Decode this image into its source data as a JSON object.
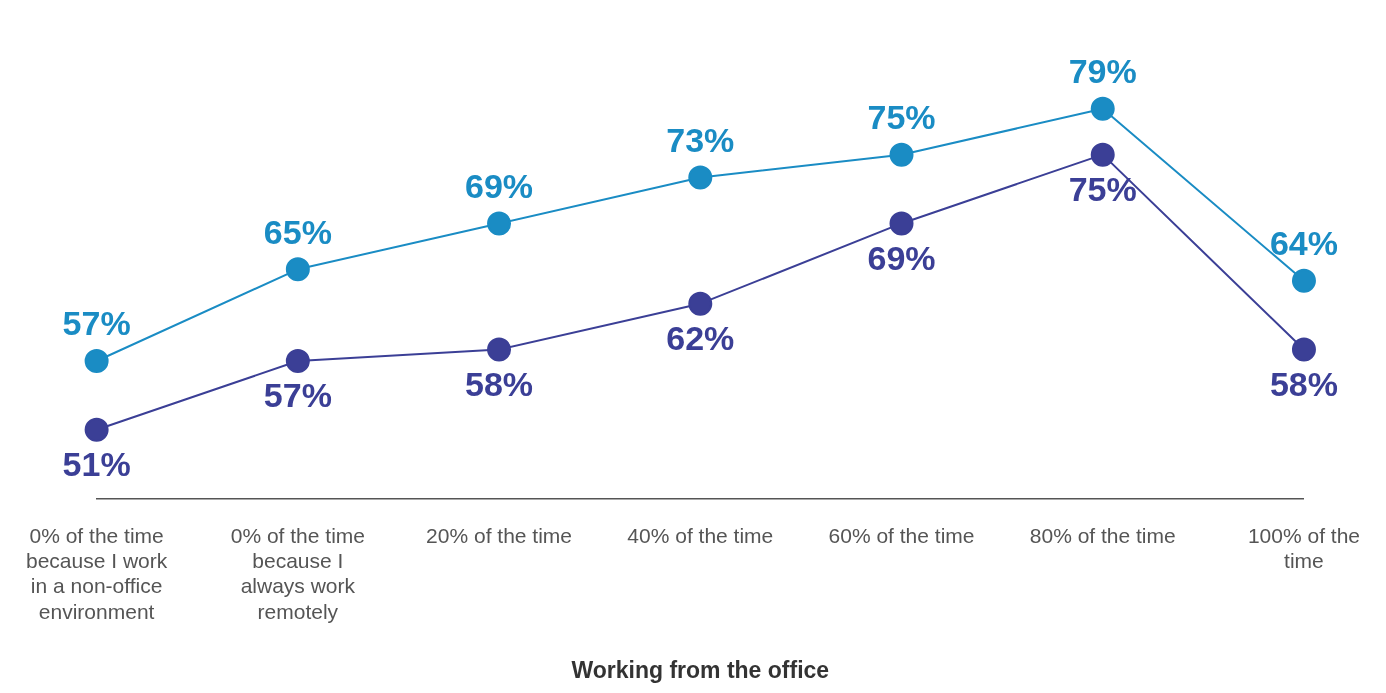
{
  "chart_data": {
    "type": "line",
    "xlabel": "Working from the office",
    "categories": [
      "0% of the time because I work in a non-office environment",
      "0% of the time because I always work remotely",
      "20% of the time",
      "40% of the time",
      "60% of the time",
      "80% of the time",
      "100% of the time"
    ],
    "series": [
      {
        "color": "#1a8cc4",
        "values": [
          57,
          65,
          69,
          73,
          75,
          79,
          64
        ],
        "value_labels": [
          "57%",
          "65%",
          "69%",
          "73%",
          "75%",
          "79%",
          "64%"
        ]
      },
      {
        "color": "#3b3f96",
        "values": [
          51,
          57,
          58,
          62,
          69,
          75,
          58
        ],
        "value_labels": [
          "51%",
          "57%",
          "58%",
          "62%",
          "69%",
          "75%",
          "58%"
        ]
      }
    ],
    "tick_labels": "x",
    "grid": false,
    "legend": false,
    "marker": "circle",
    "line_style": "solid"
  }
}
